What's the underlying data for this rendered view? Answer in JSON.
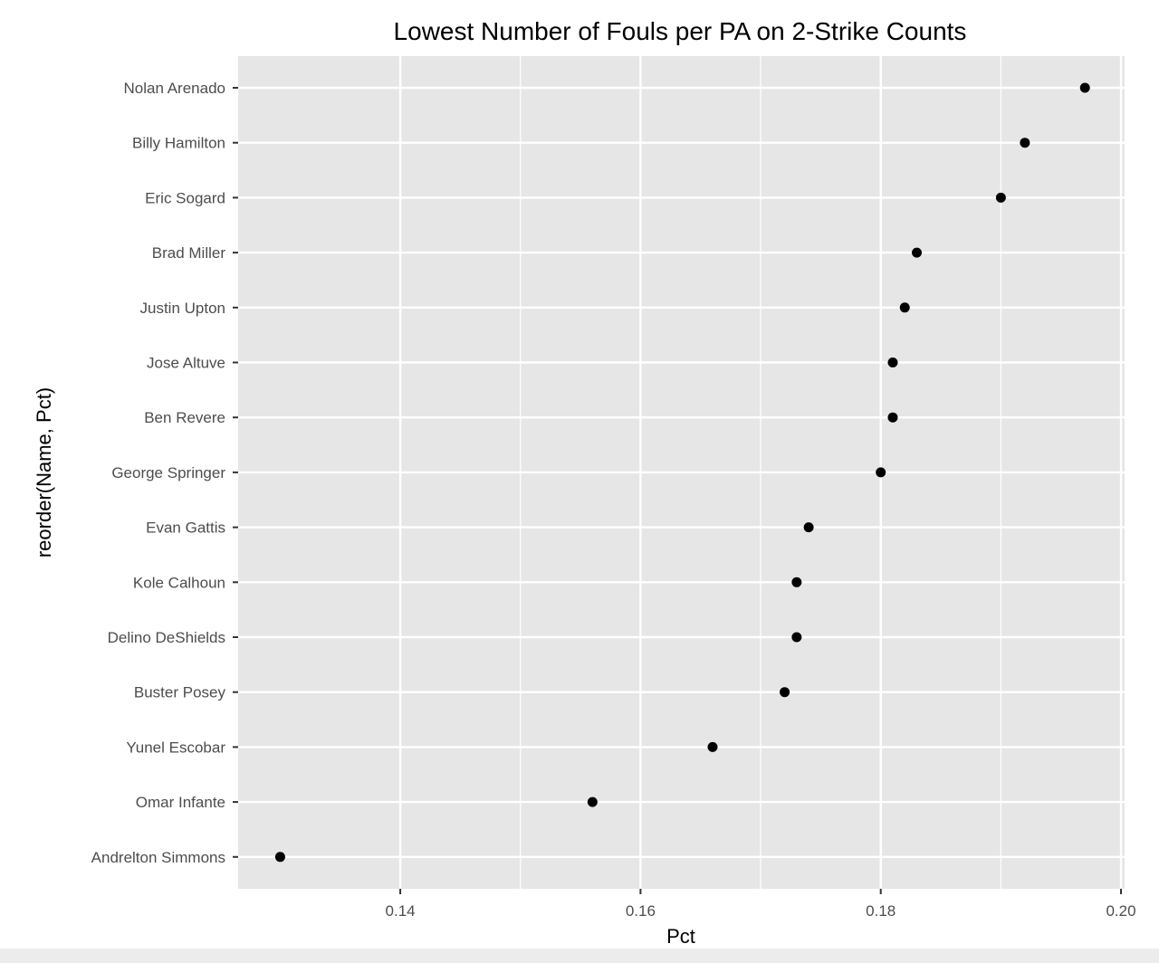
{
  "chart_data": {
    "type": "scatter",
    "title": "Lowest Number of Fouls per PA on 2-Strike Counts",
    "xlabel": "Pct",
    "ylabel": "reorder(Name, Pct)",
    "xlim": [
      0.1265,
      0.2003
    ],
    "x_ticks": [
      "0.14",
      "0.16",
      "0.18",
      "0.20"
    ],
    "x_tick_values": [
      0.14,
      0.16,
      0.18,
      0.2
    ],
    "grid": true,
    "legend": "none",
    "colors": {
      "panel": "#e6e6e6",
      "grid": "#ffffff",
      "point": "#000000",
      "tick_text": "#4d4d4d"
    },
    "points": [
      {
        "name": "Nolan Arenado",
        "value": 0.197
      },
      {
        "name": "Billy Hamilton",
        "value": 0.192
      },
      {
        "name": "Eric Sogard",
        "value": 0.19
      },
      {
        "name": "Brad Miller",
        "value": 0.183
      },
      {
        "name": "Justin Upton",
        "value": 0.182
      },
      {
        "name": "Jose Altuve",
        "value": 0.181
      },
      {
        "name": "Ben Revere",
        "value": 0.181
      },
      {
        "name": "George Springer",
        "value": 0.18
      },
      {
        "name": "Evan Gattis",
        "value": 0.174
      },
      {
        "name": "Kole Calhoun",
        "value": 0.173
      },
      {
        "name": "Delino DeShields",
        "value": 0.173
      },
      {
        "name": "Buster Posey",
        "value": 0.172
      },
      {
        "name": "Yunel Escobar",
        "value": 0.166
      },
      {
        "name": "Omar Infante",
        "value": 0.156
      },
      {
        "name": "Andrelton Simmons",
        "value": 0.13
      }
    ]
  }
}
